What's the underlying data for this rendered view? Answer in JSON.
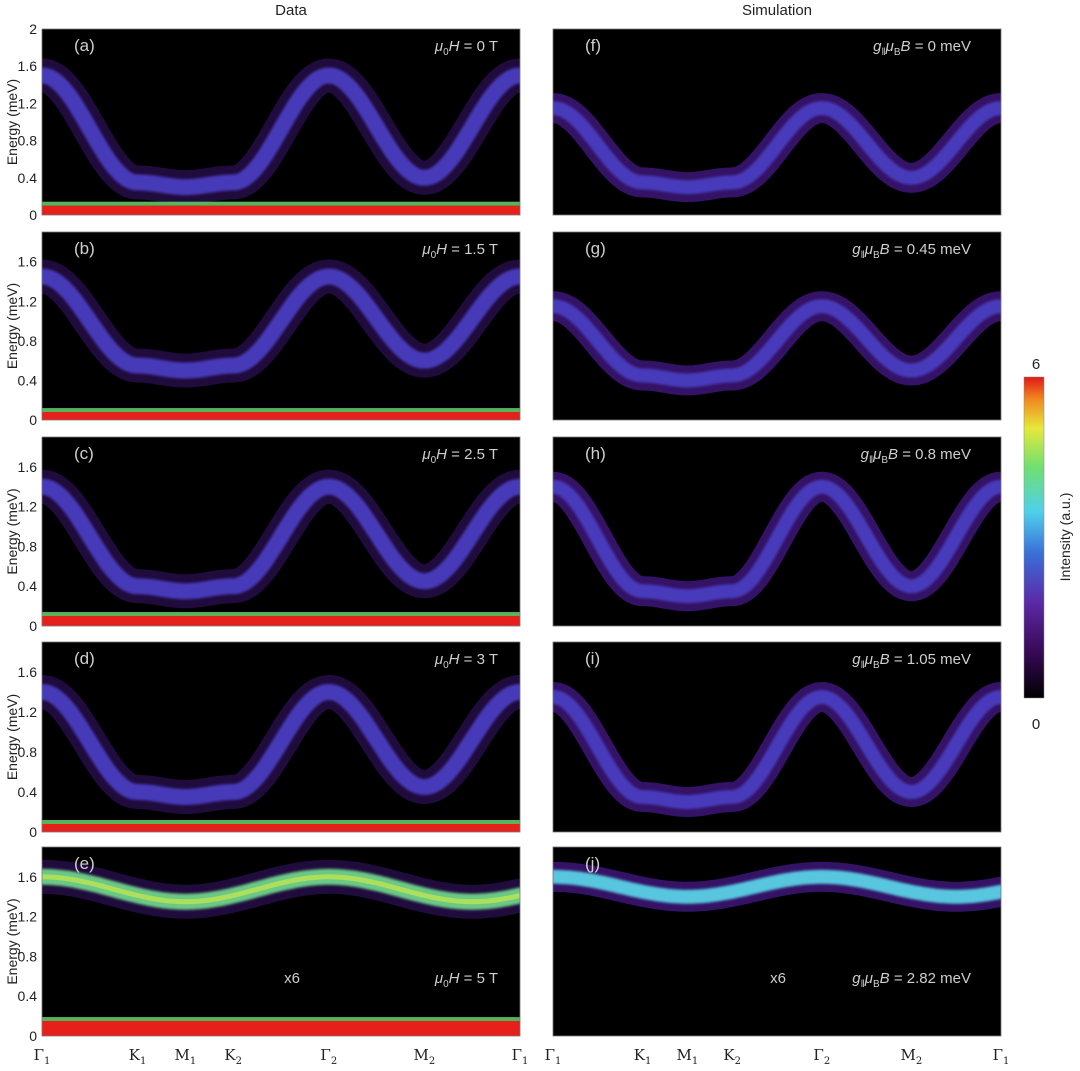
{
  "figure": {
    "col_titles": [
      "Data",
      "Simulation"
    ],
    "ylabel": "Energy (meV)",
    "colorbar": {
      "label": "Intensity (a.u.)",
      "max_label": "6",
      "min_label": "0",
      "range": [
        0,
        6
      ]
    },
    "x_ticks": [
      {
        "base": "Γ",
        "sub": "1"
      },
      {
        "base": "K",
        "sub": "1"
      },
      {
        "base": "M",
        "sub": "1"
      },
      {
        "base": "K",
        "sub": "2"
      },
      {
        "base": "Γ",
        "sub": "2"
      },
      {
        "base": "M",
        "sub": "2"
      },
      {
        "base": "Γ",
        "sub": "1"
      }
    ],
    "x_tick_positions": [
      0,
      1,
      1.5,
      2,
      3,
      4,
      5
    ],
    "colors": {
      "background": "#000000",
      "flat_band": "#e8201c",
      "label_text": "#cfcfcf"
    }
  },
  "chart_data": [
    {
      "type": "heatmap",
      "panel": "(a)",
      "column": "Data",
      "annotation": "μ0H = 0 T",
      "field_text": {
        "pre": "μ",
        "pre_sub": "0",
        "mid": "H",
        "post": " = 0 T"
      },
      "extra": "",
      "ylim": [
        0,
        2
      ],
      "yticks": [
        "0",
        "0.4",
        "0.8",
        "1.2",
        "1.6",
        "2"
      ],
      "yticks_values": [
        0,
        0.4,
        0.8,
        1.2,
        1.6,
        2.0
      ],
      "band_center_min": 0.3,
      "band_center_max": 1.5,
      "flat_band": 0.1
    },
    {
      "type": "heatmap",
      "panel": "(b)",
      "column": "Data",
      "annotation": "μ0H = 1.5 T",
      "field_text": {
        "pre": "μ",
        "pre_sub": "0",
        "mid": "H",
        "post": " = 1.5 T"
      },
      "extra": "",
      "ylim": [
        0,
        1.9
      ],
      "yticks": [
        "0",
        "0.4",
        "0.8",
        "1.2",
        "1.6"
      ],
      "yticks_values": [
        0,
        0.4,
        0.8,
        1.2,
        1.6
      ],
      "band_center_min": 0.5,
      "band_center_max": 1.45,
      "flat_band": 0.08
    },
    {
      "type": "heatmap",
      "panel": "(c)",
      "column": "Data",
      "annotation": "μ0H = 2.5 T",
      "field_text": {
        "pre": "μ",
        "pre_sub": "0",
        "mid": "H",
        "post": " = 2.5 T"
      },
      "extra": "",
      "ylim": [
        0,
        1.9
      ],
      "yticks": [
        "0",
        "0.4",
        "0.8",
        "1.2",
        "1.6"
      ],
      "yticks_values": [
        0,
        0.4,
        0.8,
        1.2,
        1.6
      ],
      "band_center_min": 0.35,
      "band_center_max": 1.4,
      "flat_band": 0.1
    },
    {
      "type": "heatmap",
      "panel": "(d)",
      "column": "Data",
      "annotation": "μ0H = 3 T",
      "field_text": {
        "pre": "μ",
        "pre_sub": "0",
        "mid": "H",
        "post": " = 3 T"
      },
      "extra": "",
      "ylim": [
        0,
        1.9
      ],
      "yticks": [
        "0",
        "0.4",
        "0.8",
        "1.2",
        "1.6"
      ],
      "yticks_values": [
        0,
        0.4,
        0.8,
        1.2,
        1.6
      ],
      "band_center_min": 0.35,
      "band_center_max": 1.4,
      "flat_band": 0.08
    },
    {
      "type": "heatmap",
      "panel": "(e)",
      "column": "Data",
      "annotation": "μ0H = 5 T",
      "field_text": {
        "pre": "μ",
        "pre_sub": "0",
        "mid": "H",
        "post": " = 5 T"
      },
      "extra": "x6",
      "ylim": [
        0,
        1.9
      ],
      "yticks": [
        "0",
        "0.4",
        "0.8",
        "1.2",
        "1.6"
      ],
      "yticks_values": [
        0,
        0.4,
        0.8,
        1.2,
        1.6
      ],
      "band_center_min": 1.35,
      "band_center_max": 1.6,
      "flat_band": 0.15
    },
    {
      "type": "heatmap",
      "panel": "(f)",
      "column": "Simulation",
      "annotation": "g‖μBB = 0 meV",
      "field_text": {
        "pre": "g",
        "pre_sub": "‖",
        "mid": "μ",
        "mid_sub": "B",
        "post2": "B",
        "post": " = 0 meV"
      },
      "extra": "",
      "ylim": [
        0,
        2
      ],
      "band_center_min": 0.3,
      "band_center_max": 1.15
    },
    {
      "type": "heatmap",
      "panel": "(g)",
      "column": "Simulation",
      "annotation": "g‖μBB = 0.45 meV",
      "field_text": {
        "pre": "g",
        "pre_sub": "‖",
        "mid": "μ",
        "mid_sub": "B",
        "post2": "B",
        "post": " = 0.45 meV"
      },
      "extra": "",
      "ylim": [
        0,
        1.9
      ],
      "band_center_min": 0.4,
      "band_center_max": 1.15
    },
    {
      "type": "heatmap",
      "panel": "(h)",
      "column": "Simulation",
      "annotation": "g‖μBB = 0.8 meV",
      "field_text": {
        "pre": "g",
        "pre_sub": "‖",
        "mid": "μ",
        "mid_sub": "B",
        "post2": "B",
        "post": " = 0.8 meV"
      },
      "extra": "",
      "ylim": [
        0,
        1.9
      ],
      "band_center_min": 0.3,
      "band_center_max": 1.4
    },
    {
      "type": "heatmap",
      "panel": "(i)",
      "column": "Simulation",
      "annotation": "g‖μBB = 1.05 meV",
      "field_text": {
        "pre": "g",
        "pre_sub": "‖",
        "mid": "μ",
        "mid_sub": "B",
        "post2": "B",
        "post": " = 1.05 meV"
      },
      "extra": "",
      "ylim": [
        0,
        1.9
      ],
      "band_center_min": 0.3,
      "band_center_max": 1.35
    },
    {
      "type": "heatmap",
      "panel": "(j)",
      "column": "Simulation",
      "annotation": "g‖μBB = 2.82 meV",
      "field_text": {
        "pre": "g",
        "pre_sub": "‖",
        "mid": "μ",
        "mid_sub": "B",
        "post2": "B",
        "post": " = 2.82 meV"
      },
      "extra": "x6",
      "ylim": [
        0,
        1.9
      ],
      "band_center_min": 1.4,
      "band_center_max": 1.6
    }
  ]
}
